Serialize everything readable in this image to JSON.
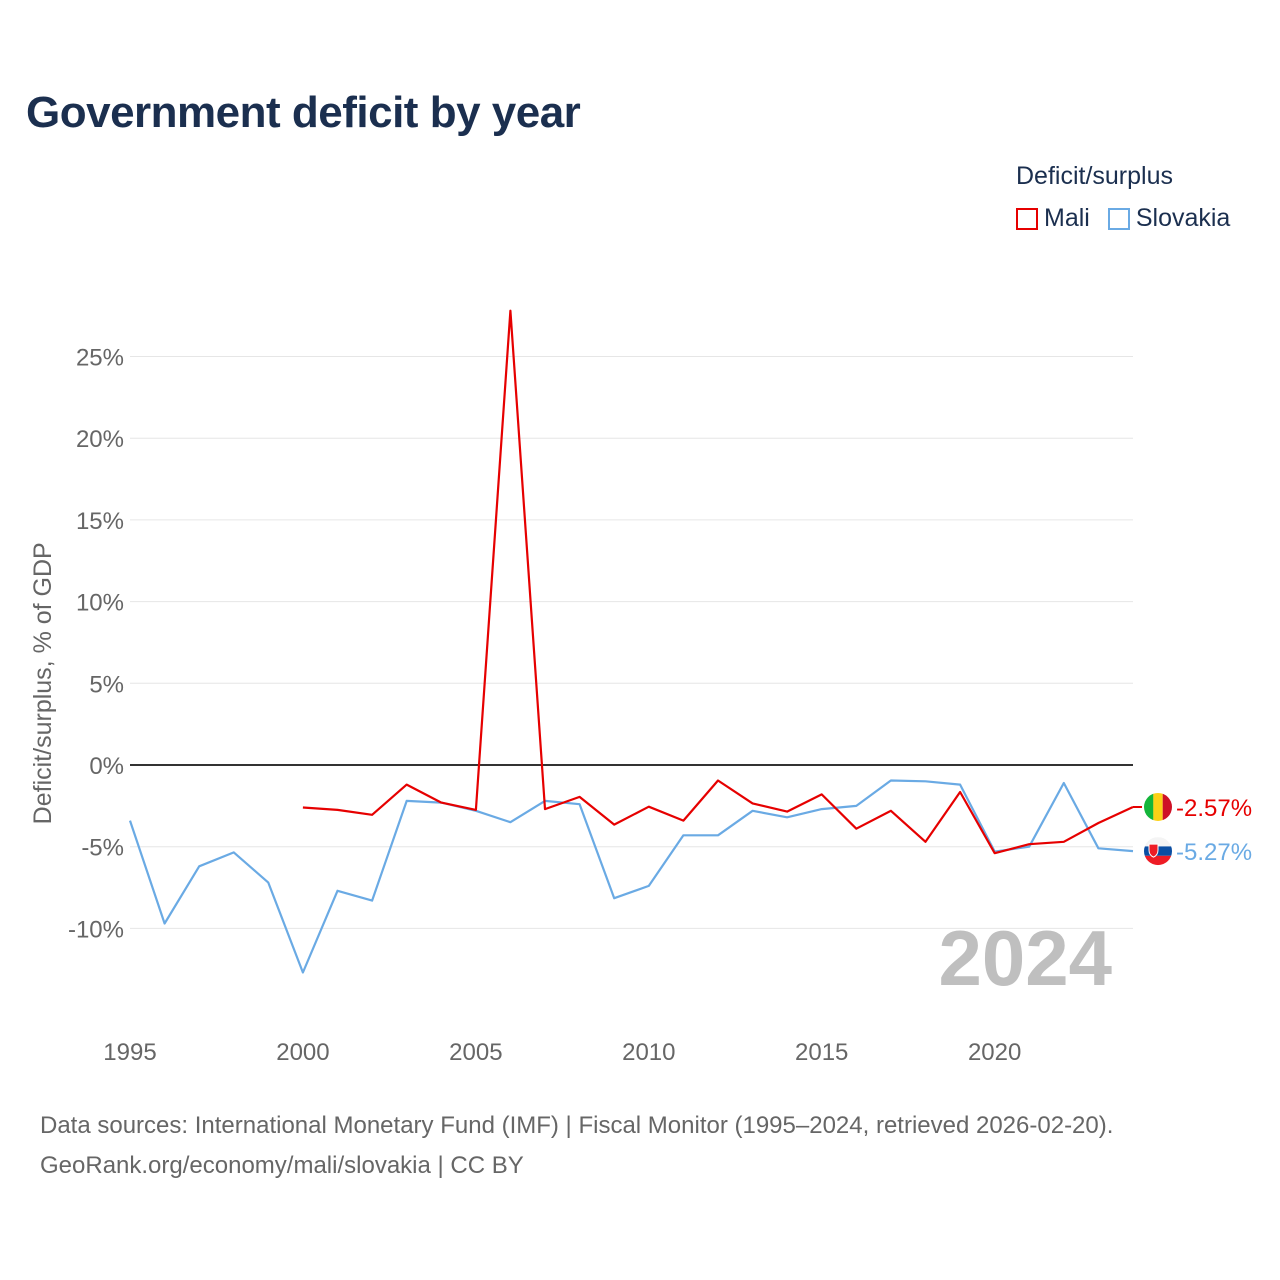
{
  "title": "Government deficit by year",
  "legend": {
    "title": "Deficit/surplus",
    "items": [
      {
        "name": "Mali",
        "color": "#e60000"
      },
      {
        "name": "Slovakia",
        "color": "#6aaae4"
      }
    ]
  },
  "chart_data": {
    "type": "line",
    "title": "Government deficit by year",
    "xlabel": "",
    "ylabel": "Deficit/surplus, % of GDP",
    "xlim": [
      1995,
      2024
    ],
    "ylim": [
      -15,
      28
    ],
    "yticks": [
      25,
      20,
      15,
      10,
      5,
      0,
      -5,
      -10
    ],
    "ytick_labels": [
      "25%",
      "20%",
      "15%",
      "10%",
      "5%",
      "0%",
      "-5%",
      "-10%"
    ],
    "xticks": [
      1995,
      2000,
      2005,
      2010,
      2015,
      2020
    ],
    "xtick_labels": [
      "1995",
      "2000",
      "2005",
      "2010",
      "2015",
      "2020"
    ],
    "year_watermark": "2024",
    "series": [
      {
        "name": "Mali",
        "color": "#e60000",
        "end_label": "-2.57%",
        "x": [
          2000,
          2001,
          2002,
          2003,
          2004,
          2005,
          2006,
          2007,
          2008,
          2009,
          2010,
          2011,
          2012,
          2013,
          2014,
          2015,
          2016,
          2017,
          2018,
          2019,
          2020,
          2021,
          2022,
          2023,
          2024
        ],
        "values": [
          -2.6,
          -2.75,
          -3.05,
          -1.2,
          -2.3,
          -2.75,
          27.8,
          -2.7,
          -1.95,
          -3.65,
          -2.55,
          -3.4,
          -0.95,
          -2.35,
          -2.85,
          -1.8,
          -3.9,
          -2.8,
          -4.7,
          -1.65,
          -5.4,
          -4.85,
          -4.7,
          -3.55,
          -2.57
        ]
      },
      {
        "name": "Slovakia",
        "color": "#6aaae4",
        "end_label": "-5.27%",
        "x": [
          1995,
          1996,
          1997,
          1998,
          1999,
          2000,
          2001,
          2002,
          2003,
          2004,
          2005,
          2006,
          2007,
          2008,
          2009,
          2010,
          2011,
          2012,
          2013,
          2014,
          2015,
          2016,
          2017,
          2018,
          2019,
          2020,
          2021,
          2022,
          2023,
          2024
        ],
        "values": [
          -3.4,
          -9.7,
          -6.2,
          -5.35,
          -7.2,
          -12.7,
          -7.7,
          -8.3,
          -2.2,
          -2.3,
          -2.8,
          -3.5,
          -2.2,
          -2.4,
          -8.15,
          -7.4,
          -4.3,
          -4.3,
          -2.8,
          -3.2,
          -2.7,
          -2.5,
          -0.95,
          -1.0,
          -1.2,
          -5.3,
          -5.0,
          -1.1,
          -5.1,
          -5.27
        ]
      }
    ]
  },
  "footer": {
    "line1": "Data sources: International Monetary Fund (IMF) | Fiscal Monitor (1995–2024, retrieved 2026-02-20).",
    "line2": "GeoRank.org/economy/mali/slovakia | CC BY"
  }
}
